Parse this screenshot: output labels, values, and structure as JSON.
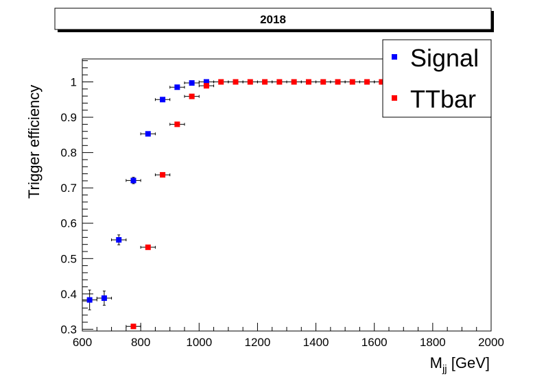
{
  "chart_data": {
    "type": "scatter",
    "title": "2018",
    "xlabel": "M",
    "xlabel_sub": "jj",
    "xlabel_unit": " [GeV]",
    "ylabel": "Trigger efficiency",
    "xlim": [
      600,
      2000
    ],
    "ylim": [
      0.295,
      1.065
    ],
    "x_ticks": [
      600,
      800,
      1000,
      1200,
      1400,
      1600,
      1800,
      2000
    ],
    "y_ticks": [
      0.3,
      0.4,
      0.5,
      0.6,
      0.7,
      0.8,
      0.9,
      1
    ],
    "y_tick_labels": [
      "0.3",
      "0.4",
      "0.5",
      "0.6",
      "0.7",
      "0.8",
      "0.9",
      "1"
    ],
    "legend_position": "top-right",
    "series": [
      {
        "name": "Signal",
        "color": "#0000ff",
        "points": [
          {
            "x": 625,
            "y": 0.383,
            "xerr": 25,
            "yerr": 0.028
          },
          {
            "x": 675,
            "y": 0.388,
            "xerr": 25,
            "yerr": 0.02
          },
          {
            "x": 725,
            "y": 0.553,
            "xerr": 25,
            "yerr": 0.014
          },
          {
            "x": 775,
            "y": 0.721,
            "xerr": 25,
            "yerr": 0.009
          },
          {
            "x": 825,
            "y": 0.853,
            "xerr": 25,
            "yerr": 0.005
          },
          {
            "x": 875,
            "y": 0.95,
            "xerr": 25,
            "yerr": 0.003
          },
          {
            "x": 925,
            "y": 0.985,
            "xerr": 25,
            "yerr": 0.002
          },
          {
            "x": 975,
            "y": 0.997,
            "xerr": 25,
            "yerr": 0.001
          },
          {
            "x": 1025,
            "y": 1.0,
            "xerr": 25,
            "yerr": 0
          }
        ]
      },
      {
        "name": "TTbar",
        "color": "#ff0000",
        "points": [
          {
            "x": 775,
            "y": 0.308,
            "xerr": 25,
            "yerr": 0
          },
          {
            "x": 825,
            "y": 0.532,
            "xerr": 25,
            "yerr": 0
          },
          {
            "x": 875,
            "y": 0.737,
            "xerr": 25,
            "yerr": 0
          },
          {
            "x": 925,
            "y": 0.88,
            "xerr": 25,
            "yerr": 0
          },
          {
            "x": 975,
            "y": 0.959,
            "xerr": 25,
            "yerr": 0
          },
          {
            "x": 1025,
            "y": 0.989,
            "xerr": 25,
            "yerr": 0
          },
          {
            "x": 1075,
            "y": 1.0,
            "xerr": 25,
            "yerr": 0
          },
          {
            "x": 1125,
            "y": 1.0,
            "xerr": 25,
            "yerr": 0
          },
          {
            "x": 1175,
            "y": 1.0,
            "xerr": 25,
            "yerr": 0
          },
          {
            "x": 1225,
            "y": 1.0,
            "xerr": 25,
            "yerr": 0
          },
          {
            "x": 1275,
            "y": 1.0,
            "xerr": 25,
            "yerr": 0
          },
          {
            "x": 1325,
            "y": 1.0,
            "xerr": 25,
            "yerr": 0
          },
          {
            "x": 1375,
            "y": 1.0,
            "xerr": 25,
            "yerr": 0
          },
          {
            "x": 1425,
            "y": 1.0,
            "xerr": 25,
            "yerr": 0
          },
          {
            "x": 1475,
            "y": 1.0,
            "xerr": 25,
            "yerr": 0
          },
          {
            "x": 1525,
            "y": 1.0,
            "xerr": 25,
            "yerr": 0
          },
          {
            "x": 1575,
            "y": 1.0,
            "xerr": 25,
            "yerr": 0
          },
          {
            "x": 1625,
            "y": 1.0,
            "xerr": 25,
            "yerr": 0
          }
        ]
      }
    ]
  }
}
